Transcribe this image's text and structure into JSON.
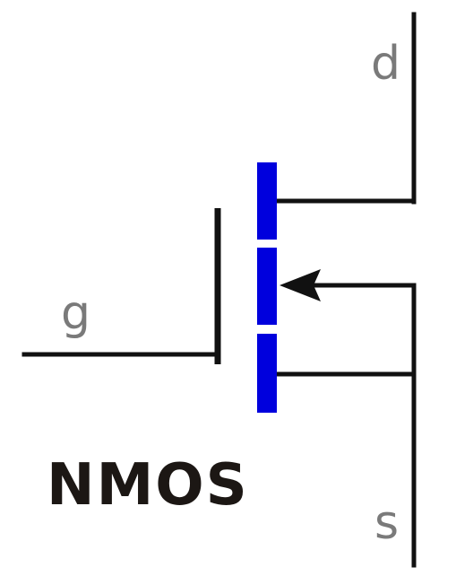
{
  "diagram": {
    "terminals": {
      "drain": "d",
      "gate": "g",
      "source": "s"
    },
    "device_label": "NMOS",
    "colors": {
      "wire": "#111111",
      "channel": "#0000dd",
      "terminal_text": "#7a7a7a",
      "device_text": "#1c1714"
    },
    "channel_segments": 3
  }
}
